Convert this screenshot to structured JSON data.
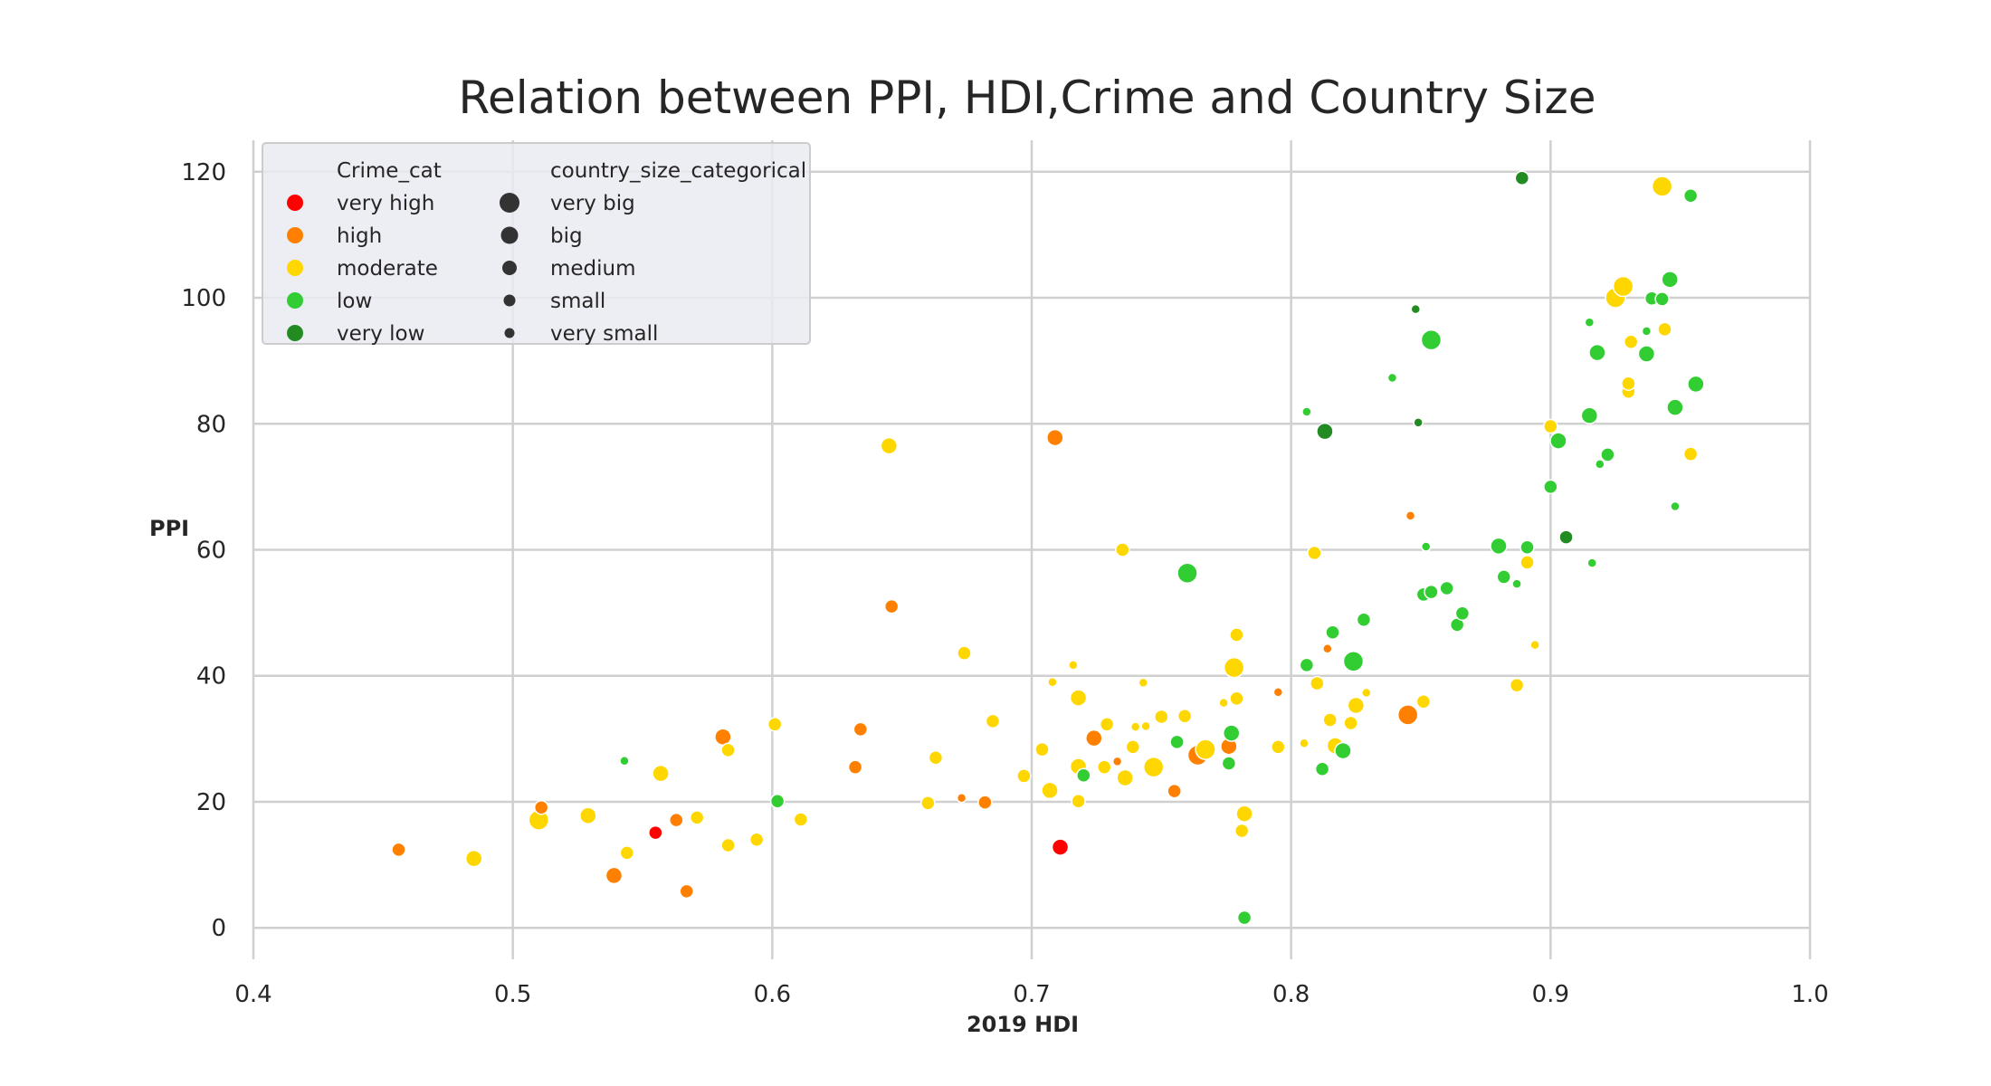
{
  "chart_data": {
    "type": "scatter",
    "title": "Relation between PPI, HDI,Crime and Country Size",
    "xlabel": "2019 HDI",
    "ylabel": "PPI",
    "xlim": [
      0.4,
      1.0
    ],
    "ylim": [
      -5,
      125
    ],
    "x_ticks": [
      "0.4",
      "0.5",
      "0.6",
      "0.7",
      "0.8",
      "0.9",
      "1.0"
    ],
    "y_ticks": [
      "0",
      "20",
      "40",
      "60",
      "80",
      "100",
      "120"
    ],
    "grid": true,
    "legend_position": "upper-left",
    "crime_legend": {
      "title": "Crime_cat",
      "entries": [
        {
          "label": "very high",
          "color": "#ff0000"
        },
        {
          "label": "high",
          "color": "#ff8000"
        },
        {
          "label": "moderate",
          "color": "#ffd700"
        },
        {
          "label": "low",
          "color": "#32cd32"
        },
        {
          "label": "very low",
          "color": "#228b22"
        }
      ]
    },
    "size_legend": {
      "title": "country_size_categorical",
      "entries": [
        {
          "label": "very big",
          "color": "#333333"
        },
        {
          "label": "big",
          "color": "#333333"
        },
        {
          "label": "medium",
          "color": "#333333"
        },
        {
          "label": "small",
          "color": "#333333"
        },
        {
          "label": "very small",
          "color": "#333333"
        }
      ]
    },
    "points": [
      {
        "hdi": 0.456,
        "ppi": 12.4,
        "crime": "high",
        "size": "medium"
      },
      {
        "hdi": 0.485,
        "ppi": 11.0,
        "crime": "moderate",
        "size": "big"
      },
      {
        "hdi": 0.51,
        "ppi": 17.1,
        "crime": "moderate",
        "size": "very big"
      },
      {
        "hdi": 0.511,
        "ppi": 19.1,
        "crime": "high",
        "size": "medium"
      },
      {
        "hdi": 0.529,
        "ppi": 17.8,
        "crime": "moderate",
        "size": "big"
      },
      {
        "hdi": 0.539,
        "ppi": 8.3,
        "crime": "high",
        "size": "big"
      },
      {
        "hdi": 0.543,
        "ppi": 26.5,
        "crime": "low",
        "size": "very small"
      },
      {
        "hdi": 0.544,
        "ppi": 11.9,
        "crime": "moderate",
        "size": "medium"
      },
      {
        "hdi": 0.555,
        "ppi": 15.1,
        "crime": "very high",
        "size": "medium"
      },
      {
        "hdi": 0.557,
        "ppi": 24.5,
        "crime": "moderate",
        "size": "big"
      },
      {
        "hdi": 0.563,
        "ppi": 17.1,
        "crime": "high",
        "size": "medium"
      },
      {
        "hdi": 0.567,
        "ppi": 5.8,
        "crime": "high",
        "size": "medium"
      },
      {
        "hdi": 0.571,
        "ppi": 17.5,
        "crime": "moderate",
        "size": "medium"
      },
      {
        "hdi": 0.581,
        "ppi": 30.3,
        "crime": "high",
        "size": "big"
      },
      {
        "hdi": 0.583,
        "ppi": 28.2,
        "crime": "moderate",
        "size": "medium"
      },
      {
        "hdi": 0.583,
        "ppi": 13.1,
        "crime": "moderate",
        "size": "medium"
      },
      {
        "hdi": 0.594,
        "ppi": 14.0,
        "crime": "moderate",
        "size": "medium"
      },
      {
        "hdi": 0.601,
        "ppi": 32.3,
        "crime": "moderate",
        "size": "medium"
      },
      {
        "hdi": 0.602,
        "ppi": 20.1,
        "crime": "low",
        "size": "medium"
      },
      {
        "hdi": 0.611,
        "ppi": 17.2,
        "crime": "moderate",
        "size": "medium"
      },
      {
        "hdi": 0.632,
        "ppi": 25.5,
        "crime": "high",
        "size": "medium"
      },
      {
        "hdi": 0.634,
        "ppi": 31.5,
        "crime": "high",
        "size": "medium"
      },
      {
        "hdi": 0.645,
        "ppi": 76.5,
        "crime": "moderate",
        "size": "big"
      },
      {
        "hdi": 0.646,
        "ppi": 51.0,
        "crime": "high",
        "size": "medium"
      },
      {
        "hdi": 0.66,
        "ppi": 19.8,
        "crime": "moderate",
        "size": "medium"
      },
      {
        "hdi": 0.663,
        "ppi": 27.0,
        "crime": "moderate",
        "size": "medium"
      },
      {
        "hdi": 0.673,
        "ppi": 20.6,
        "crime": "high",
        "size": "very small"
      },
      {
        "hdi": 0.674,
        "ppi": 43.6,
        "crime": "moderate",
        "size": "medium"
      },
      {
        "hdi": 0.682,
        "ppi": 19.9,
        "crime": "high",
        "size": "medium"
      },
      {
        "hdi": 0.685,
        "ppi": 32.8,
        "crime": "moderate",
        "size": "medium"
      },
      {
        "hdi": 0.697,
        "ppi": 24.1,
        "crime": "moderate",
        "size": "medium"
      },
      {
        "hdi": 0.704,
        "ppi": 28.3,
        "crime": "moderate",
        "size": "medium"
      },
      {
        "hdi": 0.707,
        "ppi": 21.8,
        "crime": "moderate",
        "size": "big"
      },
      {
        "hdi": 0.708,
        "ppi": 39.0,
        "crime": "moderate",
        "size": "very small"
      },
      {
        "hdi": 0.709,
        "ppi": 77.8,
        "crime": "high",
        "size": "big"
      },
      {
        "hdi": 0.711,
        "ppi": 12.8,
        "crime": "very high",
        "size": "big"
      },
      {
        "hdi": 0.716,
        "ppi": 41.7,
        "crime": "moderate",
        "size": "very small"
      },
      {
        "hdi": 0.718,
        "ppi": 36.5,
        "crime": "moderate",
        "size": "big"
      },
      {
        "hdi": 0.718,
        "ppi": 25.6,
        "crime": "moderate",
        "size": "big"
      },
      {
        "hdi": 0.718,
        "ppi": 20.1,
        "crime": "moderate",
        "size": "medium"
      },
      {
        "hdi": 0.72,
        "ppi": 24.2,
        "crime": "low",
        "size": "medium"
      },
      {
        "hdi": 0.724,
        "ppi": 30.1,
        "crime": "high",
        "size": "big"
      },
      {
        "hdi": 0.728,
        "ppi": 25.5,
        "crime": "moderate",
        "size": "medium"
      },
      {
        "hdi": 0.729,
        "ppi": 32.3,
        "crime": "moderate",
        "size": "medium"
      },
      {
        "hdi": 0.733,
        "ppi": 26.4,
        "crime": "high",
        "size": "very small"
      },
      {
        "hdi": 0.735,
        "ppi": 60.0,
        "crime": "moderate",
        "size": "medium"
      },
      {
        "hdi": 0.736,
        "ppi": 23.8,
        "crime": "moderate",
        "size": "big"
      },
      {
        "hdi": 0.739,
        "ppi": 28.7,
        "crime": "moderate",
        "size": "medium"
      },
      {
        "hdi": 0.74,
        "ppi": 31.9,
        "crime": "moderate",
        "size": "very small"
      },
      {
        "hdi": 0.743,
        "ppi": 38.9,
        "crime": "moderate",
        "size": "very small"
      },
      {
        "hdi": 0.744,
        "ppi": 32.0,
        "crime": "moderate",
        "size": "very small"
      },
      {
        "hdi": 0.747,
        "ppi": 25.5,
        "crime": "moderate",
        "size": "very big"
      },
      {
        "hdi": 0.75,
        "ppi": 33.5,
        "crime": "moderate",
        "size": "medium"
      },
      {
        "hdi": 0.755,
        "ppi": 21.7,
        "crime": "high",
        "size": "medium"
      },
      {
        "hdi": 0.756,
        "ppi": 29.5,
        "crime": "low",
        "size": "medium"
      },
      {
        "hdi": 0.759,
        "ppi": 33.6,
        "crime": "moderate",
        "size": "medium"
      },
      {
        "hdi": 0.76,
        "ppi": 56.3,
        "crime": "low",
        "size": "very big"
      },
      {
        "hdi": 0.764,
        "ppi": 27.4,
        "crime": "high",
        "size": "very big"
      },
      {
        "hdi": 0.767,
        "ppi": 28.3,
        "crime": "moderate",
        "size": "very big"
      },
      {
        "hdi": 0.774,
        "ppi": 35.7,
        "crime": "moderate",
        "size": "very small"
      },
      {
        "hdi": 0.776,
        "ppi": 28.8,
        "crime": "high",
        "size": "big"
      },
      {
        "hdi": 0.776,
        "ppi": 26.1,
        "crime": "low",
        "size": "medium"
      },
      {
        "hdi": 0.777,
        "ppi": 30.9,
        "crime": "low",
        "size": "big"
      },
      {
        "hdi": 0.778,
        "ppi": 41.3,
        "crime": "moderate",
        "size": "very big"
      },
      {
        "hdi": 0.779,
        "ppi": 36.4,
        "crime": "moderate",
        "size": "medium"
      },
      {
        "hdi": 0.779,
        "ppi": 46.5,
        "crime": "moderate",
        "size": "medium"
      },
      {
        "hdi": 0.781,
        "ppi": 15.4,
        "crime": "moderate",
        "size": "medium"
      },
      {
        "hdi": 0.782,
        "ppi": 18.1,
        "crime": "moderate",
        "size": "big"
      },
      {
        "hdi": 0.782,
        "ppi": 1.6,
        "crime": "low",
        "size": "medium"
      },
      {
        "hdi": 0.795,
        "ppi": 37.4,
        "crime": "high",
        "size": "very small"
      },
      {
        "hdi": 0.795,
        "ppi": 28.7,
        "crime": "moderate",
        "size": "medium"
      },
      {
        "hdi": 0.805,
        "ppi": 29.3,
        "crime": "moderate",
        "size": "very small"
      },
      {
        "hdi": 0.806,
        "ppi": 41.7,
        "crime": "low",
        "size": "medium"
      },
      {
        "hdi": 0.806,
        "ppi": 81.9,
        "crime": "low",
        "size": "very small"
      },
      {
        "hdi": 0.809,
        "ppi": 59.5,
        "crime": "moderate",
        "size": "medium"
      },
      {
        "hdi": 0.81,
        "ppi": 38.8,
        "crime": "moderate",
        "size": "medium"
      },
      {
        "hdi": 0.812,
        "ppi": 25.2,
        "crime": "low",
        "size": "medium"
      },
      {
        "hdi": 0.813,
        "ppi": 78.8,
        "crime": "very low",
        "size": "big"
      },
      {
        "hdi": 0.814,
        "ppi": 44.3,
        "crime": "high",
        "size": "very small"
      },
      {
        "hdi": 0.815,
        "ppi": 33.0,
        "crime": "moderate",
        "size": "medium"
      },
      {
        "hdi": 0.816,
        "ppi": 46.9,
        "crime": "low",
        "size": "medium"
      },
      {
        "hdi": 0.817,
        "ppi": 28.9,
        "crime": "moderate",
        "size": "big"
      },
      {
        "hdi": 0.82,
        "ppi": 28.1,
        "crime": "low",
        "size": "big"
      },
      {
        "hdi": 0.823,
        "ppi": 32.5,
        "crime": "moderate",
        "size": "medium"
      },
      {
        "hdi": 0.824,
        "ppi": 42.3,
        "crime": "low",
        "size": "very big"
      },
      {
        "hdi": 0.825,
        "ppi": 35.3,
        "crime": "moderate",
        "size": "big"
      },
      {
        "hdi": 0.828,
        "ppi": 48.9,
        "crime": "low",
        "size": "medium"
      },
      {
        "hdi": 0.829,
        "ppi": 37.3,
        "crime": "moderate",
        "size": "very small"
      },
      {
        "hdi": 0.839,
        "ppi": 87.3,
        "crime": "low",
        "size": "very small"
      },
      {
        "hdi": 0.845,
        "ppi": 33.8,
        "crime": "high",
        "size": "very big"
      },
      {
        "hdi": 0.846,
        "ppi": 65.4,
        "crime": "high",
        "size": "very small"
      },
      {
        "hdi": 0.848,
        "ppi": 98.2,
        "crime": "very low",
        "size": "very small"
      },
      {
        "hdi": 0.849,
        "ppi": 80.2,
        "crime": "very low",
        "size": "very small"
      },
      {
        "hdi": 0.851,
        "ppi": 52.9,
        "crime": "low",
        "size": "medium"
      },
      {
        "hdi": 0.851,
        "ppi": 35.9,
        "crime": "moderate",
        "size": "medium"
      },
      {
        "hdi": 0.852,
        "ppi": 60.5,
        "crime": "low",
        "size": "very small"
      },
      {
        "hdi": 0.854,
        "ppi": 53.3,
        "crime": "low",
        "size": "medium"
      },
      {
        "hdi": 0.854,
        "ppi": 93.3,
        "crime": "low",
        "size": "very big"
      },
      {
        "hdi": 0.86,
        "ppi": 53.9,
        "crime": "low",
        "size": "medium"
      },
      {
        "hdi": 0.864,
        "ppi": 48.1,
        "crime": "low",
        "size": "medium"
      },
      {
        "hdi": 0.866,
        "ppi": 49.9,
        "crime": "low",
        "size": "medium"
      },
      {
        "hdi": 0.88,
        "ppi": 60.6,
        "crime": "low",
        "size": "big"
      },
      {
        "hdi": 0.882,
        "ppi": 55.7,
        "crime": "low",
        "size": "medium"
      },
      {
        "hdi": 0.887,
        "ppi": 38.5,
        "crime": "moderate",
        "size": "medium"
      },
      {
        "hdi": 0.887,
        "ppi": 54.6,
        "crime": "low",
        "size": "very small"
      },
      {
        "hdi": 0.889,
        "ppi": 119.0,
        "crime": "very low",
        "size": "medium"
      },
      {
        "hdi": 0.891,
        "ppi": 58.0,
        "crime": "moderate",
        "size": "medium"
      },
      {
        "hdi": 0.891,
        "ppi": 60.4,
        "crime": "low",
        "size": "medium"
      },
      {
        "hdi": 0.894,
        "ppi": 44.9,
        "crime": "moderate",
        "size": "very small"
      },
      {
        "hdi": 0.9,
        "ppi": 70.0,
        "crime": "low",
        "size": "medium"
      },
      {
        "hdi": 0.9,
        "ppi": 79.6,
        "crime": "moderate",
        "size": "medium"
      },
      {
        "hdi": 0.903,
        "ppi": 77.3,
        "crime": "low",
        "size": "big"
      },
      {
        "hdi": 0.906,
        "ppi": 62.0,
        "crime": "very low",
        "size": "medium"
      },
      {
        "hdi": 0.915,
        "ppi": 96.1,
        "crime": "low",
        "size": "very small"
      },
      {
        "hdi": 0.915,
        "ppi": 81.3,
        "crime": "low",
        "size": "big"
      },
      {
        "hdi": 0.916,
        "ppi": 57.9,
        "crime": "low",
        "size": "very small"
      },
      {
        "hdi": 0.918,
        "ppi": 91.3,
        "crime": "low",
        "size": "big"
      },
      {
        "hdi": 0.919,
        "ppi": 73.6,
        "crime": "low",
        "size": "very small"
      },
      {
        "hdi": 0.922,
        "ppi": 75.1,
        "crime": "low",
        "size": "medium"
      },
      {
        "hdi": 0.925,
        "ppi": 100.0,
        "crime": "moderate",
        "size": "very big"
      },
      {
        "hdi": 0.928,
        "ppi": 101.8,
        "crime": "moderate",
        "size": "very big"
      },
      {
        "hdi": 0.93,
        "ppi": 85.1,
        "crime": "moderate",
        "size": "medium"
      },
      {
        "hdi": 0.93,
        "ppi": 86.4,
        "crime": "moderate",
        "size": "medium"
      },
      {
        "hdi": 0.931,
        "ppi": 93.0,
        "crime": "moderate",
        "size": "medium"
      },
      {
        "hdi": 0.937,
        "ppi": 94.7,
        "crime": "low",
        "size": "very small"
      },
      {
        "hdi": 0.937,
        "ppi": 91.1,
        "crime": "low",
        "size": "big"
      },
      {
        "hdi": 0.939,
        "ppi": 99.9,
        "crime": "low",
        "size": "medium"
      },
      {
        "hdi": 0.943,
        "ppi": 99.8,
        "crime": "low",
        "size": "medium"
      },
      {
        "hdi": 0.943,
        "ppi": 117.7,
        "crime": "moderate",
        "size": "very big"
      },
      {
        "hdi": 0.944,
        "ppi": 95.0,
        "crime": "moderate",
        "size": "medium"
      },
      {
        "hdi": 0.946,
        "ppi": 102.9,
        "crime": "low",
        "size": "big"
      },
      {
        "hdi": 0.948,
        "ppi": 82.6,
        "crime": "low",
        "size": "big"
      },
      {
        "hdi": 0.948,
        "ppi": 66.9,
        "crime": "low",
        "size": "very small"
      },
      {
        "hdi": 0.954,
        "ppi": 116.2,
        "crime": "low",
        "size": "medium"
      },
      {
        "hdi": 0.954,
        "ppi": 75.2,
        "crime": "moderate",
        "size": "medium"
      },
      {
        "hdi": 0.956,
        "ppi": 86.3,
        "crime": "low",
        "size": "big"
      }
    ]
  }
}
